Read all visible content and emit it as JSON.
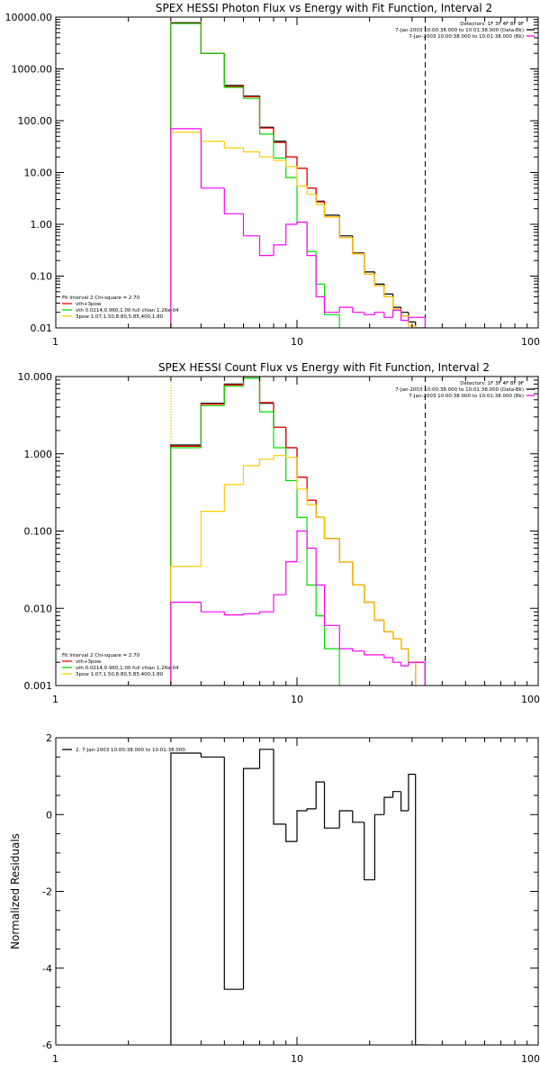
{
  "chart_data": [
    {
      "type": "line",
      "title": "SPEX HESSI Photon Flux vs Energy with Fit Function, Interval 2",
      "xscale": "log",
      "yscale": "log",
      "xlim": [
        1,
        100
      ],
      "ylim": [
        0.01,
        10000
      ],
      "xtick_labels": [
        "1",
        "10",
        "100"
      ],
      "ytick_labels": [
        "0.01",
        "0.10",
        "1.00",
        "10.00",
        "100.00",
        "1000.00",
        "10000.00"
      ],
      "ytick_values": [
        0.01,
        0.1,
        1,
        10,
        100,
        1000,
        10000
      ],
      "vlines": [
        {
          "x": 3.0,
          "color": "#ffcc00",
          "style": "dotted"
        },
        {
          "x": 34.0,
          "color": "#000000",
          "style": "dashed"
        }
      ],
      "info_lines": [
        "Detectors: 1F 3F 4F 8F 9F",
        "7-Jan-2003 10:00:38.000 to 10:01:38.000 (Data-Bk)",
        "7-Jan-2003 10:00:38.000 to 10:01:38.000 (Bk)"
      ],
      "info_colors": [
        "",
        "#000000",
        "#ff00ff"
      ],
      "legend_lines": [
        "Fit Interval 2   Chi-square = 2.70",
        "vth+3pow",
        "vth 0.0214,0.960,1.00  full chian 1.26e-04",
        "3pow 1.07,1.50,8.80,5.85,400,1.80"
      ],
      "legend_colors": [
        "",
        "#ff0000",
        "#00dd00",
        "#ffcc00"
      ],
      "series": [
        {
          "color": "#000000",
          "edges": [
            3.0,
            4.0,
            5.0,
            6.0,
            7.0,
            8.0,
            9.0,
            10.0,
            11.0,
            12.0,
            13.0,
            15.0,
            17.0,
            19.0,
            21.0,
            23.0,
            25.0,
            27.0,
            29.0,
            31.0,
            34.0
          ],
          "values": [
            7800,
            2000,
            480,
            300,
            75,
            40,
            20,
            12,
            5.0,
            2.8,
            1.5,
            0.6,
            0.28,
            0.12,
            0.07,
            0.045,
            0.025,
            0.02,
            0.013,
            0.01
          ]
        },
        {
          "color": "#ff0000",
          "edges": [
            3.0,
            4.0,
            5.0,
            6.0,
            7.0,
            8.0,
            9.0,
            10.0,
            11.0,
            12.0,
            13.0,
            15.0,
            17.0,
            19.0,
            21.0,
            23.0,
            25.0,
            27.0,
            29.0,
            31.0
          ],
          "values": [
            7600,
            2000,
            460,
            290,
            72,
            38,
            20,
            12,
            5.0,
            2.7,
            1.4,
            0.55,
            0.27,
            0.11,
            0.065,
            0.04,
            0.023,
            0.017,
            0.011
          ]
        },
        {
          "color": "#00dd00",
          "edges": [
            3.0,
            4.0,
            5.0,
            6.0,
            7.0,
            8.0,
            9.0,
            10.0,
            11.0,
            12.0,
            13.0,
            15.0
          ],
          "values": [
            7500,
            2000,
            440,
            270,
            55,
            19,
            8,
            1.1,
            0.3,
            0.07,
            0.018
          ]
        },
        {
          "color": "#ffcc00",
          "edges": [
            3.0,
            4.0,
            5.0,
            6.0,
            7.0,
            8.0,
            9.0,
            10.0,
            11.0,
            12.0,
            13.0,
            15.0,
            17.0,
            19.0,
            21.0,
            23.0,
            25.0,
            27.0,
            29.0,
            31.0
          ],
          "values": [
            60,
            40,
            30,
            25,
            20,
            17,
            13,
            5.5,
            3.8,
            2.4,
            1.4,
            0.55,
            0.27,
            0.11,
            0.065,
            0.04,
            0.023,
            0.017,
            0.011
          ]
        },
        {
          "color": "#ff00ff",
          "edges": [
            3.0,
            4.0,
            5.0,
            6.0,
            7.0,
            8.0,
            9.0,
            10.0,
            11.0,
            12.0,
            13.0,
            15.0,
            17.0,
            19.0,
            21.0,
            23.0,
            25.0,
            27.0,
            29.0,
            31.0,
            34.0
          ],
          "values": [
            70,
            5.0,
            1.6,
            0.6,
            0.25,
            0.4,
            1.0,
            1.1,
            0.25,
            0.04,
            0.02,
            0.025,
            0.02,
            0.018,
            0.02,
            0.016,
            0.022,
            0.014,
            0.016,
            0.016
          ]
        }
      ]
    },
    {
      "type": "line",
      "title": "SPEX HESSI Count Flux vs Energy with Fit Function, Interval 2",
      "xscale": "log",
      "yscale": "log",
      "xlim": [
        1,
        100
      ],
      "ylim": [
        0.001,
        10
      ],
      "xtick_labels": [
        "1",
        "10",
        "100"
      ],
      "ytick_labels": [
        "0.001",
        "0.010",
        "0.100",
        "1.000",
        "10.000"
      ],
      "ytick_values": [
        0.001,
        0.01,
        0.1,
        1,
        10
      ],
      "vlines": [
        {
          "x": 3.0,
          "color": "#000000",
          "style": "dotted"
        },
        {
          "x": 3.0,
          "color": "#ffcc00",
          "style": "dotted"
        },
        {
          "x": 34.0,
          "color": "#000000",
          "style": "dashed"
        }
      ],
      "info_lines": [
        "Detectors: 1F 3F 4F 8F 9F",
        "7-Jan-2003 10:00:38.000 to 10:01:38.000 (Data-Bk)",
        "7-Jan-2003 10:00:38.000 to 10:01:38.000 (Bk)"
      ],
      "info_colors": [
        "",
        "#000000",
        "#ff00ff"
      ],
      "legend_lines": [
        "Fit Interval 2   Chi-square = 2.70",
        "vth+3pow",
        "vth 0.0214,0.960,1.00  full chian 1.26e-04",
        "3pow 1.07,1.50,8.80,5.85,400,1.80"
      ],
      "legend_colors": [
        "",
        "#ff0000",
        "#00dd00",
        "#ffcc00"
      ],
      "series": [
        {
          "color": "#000000",
          "edges": [
            3.0,
            4.0,
            5.0,
            6.0,
            7.0,
            8.0,
            9.0,
            10.0,
            11.0,
            12.0,
            13.0,
            15.0,
            17.0,
            19.0,
            21.0,
            23.0,
            25.0,
            27.0,
            29.0,
            31.0,
            34.0
          ],
          "values": [
            1.3,
            4.5,
            8.0,
            10.5,
            4.5,
            2.2,
            1.2,
            0.5,
            0.25,
            0.15,
            0.08,
            0.04,
            0.02,
            0.012,
            0.007,
            0.005,
            0.004,
            0.003,
            0.002,
            0.002
          ]
        },
        {
          "color": "#ff0000",
          "edges": [
            3.0,
            4.0,
            5.0,
            6.0,
            7.0,
            8.0,
            9.0,
            10.0,
            11.0,
            12.0,
            13.0,
            15.0,
            17.0,
            19.0,
            21.0,
            23.0,
            25.0,
            27.0,
            29.0,
            31.0
          ],
          "values": [
            1.25,
            4.4,
            7.8,
            10.0,
            4.6,
            2.2,
            1.2,
            0.5,
            0.25,
            0.15,
            0.08,
            0.04,
            0.02,
            0.012,
            0.007,
            0.005,
            0.004,
            0.003,
            0.002
          ]
        },
        {
          "color": "#00dd00",
          "edges": [
            3.0,
            4.0,
            5.0,
            6.0,
            7.0,
            8.0,
            9.0,
            10.0,
            11.0,
            12.0,
            13.0,
            15.0
          ],
          "values": [
            1.2,
            4.2,
            7.5,
            9.5,
            3.5,
            1.2,
            0.45,
            0.15,
            0.02,
            0.008,
            0.003
          ]
        },
        {
          "color": "#ffcc00",
          "edges": [
            3.0,
            4.0,
            5.0,
            6.0,
            7.0,
            8.0,
            9.0,
            10.0,
            11.0,
            12.0,
            13.0,
            15.0,
            17.0,
            19.0,
            21.0,
            23.0,
            25.0,
            27.0,
            29.0,
            31.0
          ],
          "values": [
            0.035,
            0.18,
            0.4,
            0.7,
            0.85,
            0.95,
            0.9,
            0.35,
            0.22,
            0.15,
            0.08,
            0.04,
            0.02,
            0.012,
            0.007,
            0.005,
            0.004,
            0.003,
            0.002
          ]
        },
        {
          "color": "#ff00ff",
          "edges": [
            3.0,
            4.0,
            5.0,
            6.0,
            7.0,
            8.0,
            9.0,
            10.0,
            11.0,
            12.0,
            13.0,
            15.0,
            17.0,
            19.0,
            21.0,
            23.0,
            25.0,
            27.0,
            29.0,
            31.0,
            34.0
          ],
          "values": [
            0.012,
            0.009,
            0.0082,
            0.0085,
            0.009,
            0.015,
            0.04,
            0.1,
            0.06,
            0.02,
            0.006,
            0.003,
            0.0028,
            0.0025,
            0.0025,
            0.0023,
            0.002,
            0.0018,
            0.002,
            0.002
          ]
        }
      ]
    },
    {
      "type": "line",
      "xscale": "log",
      "yscale": "linear",
      "xlim": [
        1,
        100
      ],
      "ylim": [
        -6,
        2
      ],
      "ylabel": "Normalized Residuals",
      "xtick_labels": [
        "1",
        "10",
        "100"
      ],
      "ytick_labels": [
        "-6",
        "-4",
        "-2",
        "0",
        "2"
      ],
      "ytick_values": [
        -6,
        -4,
        -2,
        0,
        2
      ],
      "legend_lines": [
        "2.  7-Jan-2003 10:00:38.000 to 10:01:38.000"
      ],
      "legend_colors": [
        "#000000"
      ],
      "series": [
        {
          "color": "#000000",
          "edges": [
            3.0,
            4.0,
            5.0,
            6.0,
            7.0,
            8.0,
            9.0,
            10.0,
            11.0,
            12.0,
            13.0,
            15.0,
            17.0,
            19.0,
            21.0,
            23.0,
            25.0,
            27.0,
            29.0,
            31.0,
            34.0
          ],
          "values": [
            1.6,
            1.5,
            -4.55,
            1.2,
            1.7,
            -0.25,
            -0.7,
            0.1,
            0.15,
            0.85,
            -0.35,
            0.1,
            -0.2,
            -1.7,
            0.0,
            0.45,
            0.6,
            0.1,
            1.05,
            -6.0
          ]
        }
      ]
    }
  ]
}
